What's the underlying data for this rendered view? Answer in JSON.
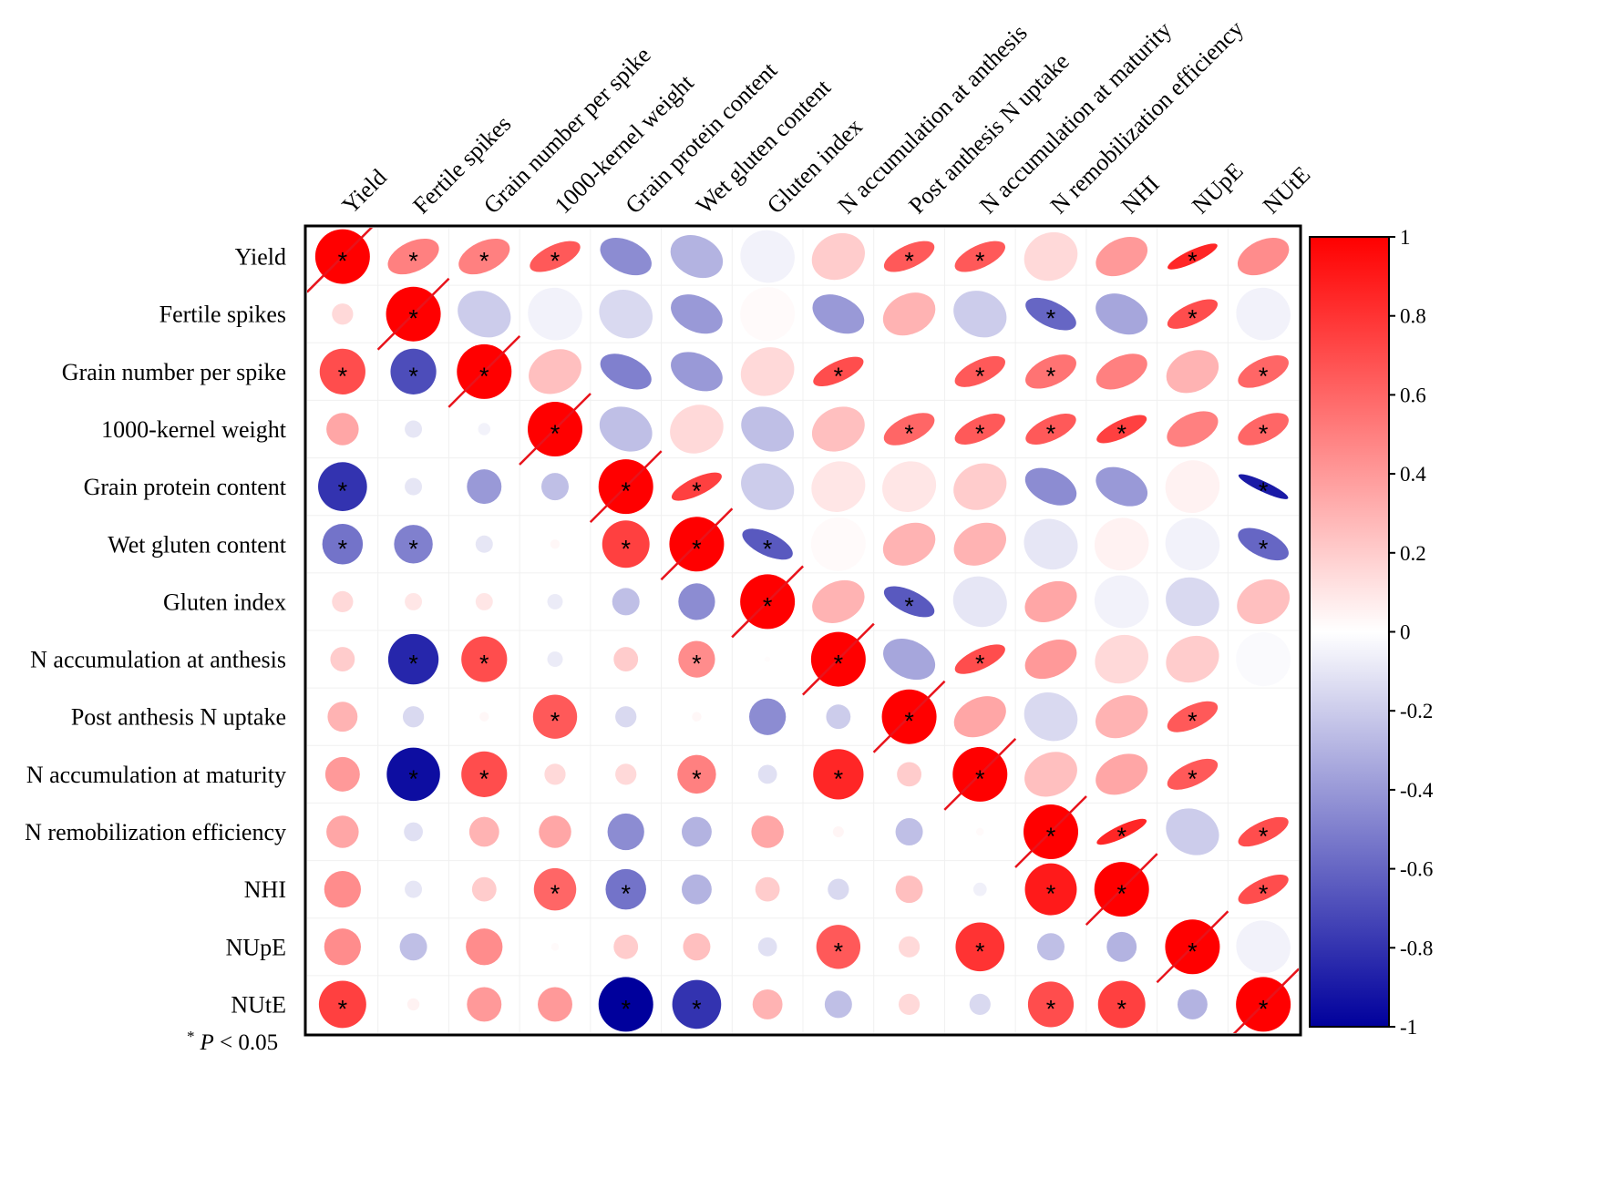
{
  "chart_data": {
    "type": "heatmap",
    "title": "",
    "variables": [
      "Yield",
      "Fertile spikes",
      "Grain number per spike",
      "1000-kernel weight",
      "Grain protein content",
      "Wet gluten content",
      "Gluten index",
      "N accumulation at anthesis",
      "Post anthesis N uptake",
      "N accumulation at maturity",
      "N remobilization efficiency",
      "NHI",
      "NUpE",
      "NUtE"
    ],
    "lower_triangle_display": "circle",
    "upper_triangle_display": "ellipse",
    "matrix": [
      [
        1.0,
        0.5,
        0.5,
        0.65,
        -0.45,
        -0.3,
        -0.05,
        0.2,
        0.65,
        0.65,
        0.15,
        0.4,
        0.85,
        0.45
      ],
      [
        0.15,
        1.0,
        -0.2,
        -0.05,
        -0.15,
        -0.4,
        0.02,
        -0.4,
        0.3,
        -0.2,
        -0.6,
        -0.35,
        0.7,
        -0.05
      ],
      [
        0.7,
        -0.7,
        1.0,
        0.25,
        -0.5,
        -0.4,
        0.15,
        0.7,
        0.0,
        0.65,
        0.55,
        0.5,
        0.3,
        0.6
      ],
      [
        0.35,
        -0.1,
        -0.05,
        1.0,
        -0.25,
        0.15,
        -0.25,
        0.25,
        0.6,
        0.65,
        0.65,
        0.75,
        0.5,
        0.6
      ],
      [
        -0.8,
        -0.1,
        -0.4,
        -0.25,
        1.0,
        0.75,
        -0.2,
        0.1,
        0.1,
        0.2,
        -0.45,
        -0.4,
        0.05,
        -0.9
      ],
      [
        -0.55,
        -0.5,
        -0.1,
        0.03,
        0.75,
        1.0,
        -0.65,
        0.02,
        0.3,
        0.3,
        -0.1,
        0.05,
        -0.05,
        -0.6
      ],
      [
        0.15,
        0.1,
        0.1,
        -0.08,
        -0.25,
        -0.45,
        1.0,
        0.3,
        -0.65,
        -0.1,
        0.35,
        -0.05,
        -0.15,
        0.25
      ],
      [
        0.2,
        -0.85,
        0.7,
        -0.08,
        0.2,
        0.45,
        0.01,
        1.0,
        -0.35,
        0.7,
        0.4,
        0.15,
        0.2,
        -0.02
      ],
      [
        0.3,
        -0.15,
        0.03,
        0.65,
        -0.15,
        0.03,
        -0.45,
        -0.2,
        1.0,
        0.35,
        -0.15,
        0.3,
        0.65,
        0.0
      ],
      [
        0.4,
        -0.95,
        0.7,
        0.15,
        0.15,
        0.5,
        -0.12,
        0.85,
        0.2,
        1.0,
        0.25,
        0.35,
        0.65,
        0.0
      ],
      [
        0.35,
        -0.12,
        0.3,
        0.35,
        -0.45,
        -0.3,
        0.35,
        0.04,
        -0.25,
        0.02,
        1.0,
        0.85,
        -0.2,
        0.7
      ],
      [
        0.45,
        -0.1,
        0.2,
        0.6,
        -0.55,
        -0.3,
        0.2,
        -0.15,
        0.25,
        -0.06,
        0.9,
        1.0,
        0.0,
        0.7
      ],
      [
        0.45,
        -0.25,
        0.45,
        0.02,
        0.2,
        0.25,
        -0.12,
        0.65,
        0.15,
        0.8,
        -0.25,
        -0.3,
        1.0,
        -0.05
      ],
      [
        0.75,
        0.05,
        0.4,
        0.4,
        -1.0,
        -0.8,
        0.3,
        -0.25,
        0.15,
        -0.15,
        0.7,
        0.75,
        -0.3,
        1.0
      ]
    ],
    "significant": [
      [
        1,
        1,
        1,
        1,
        0,
        0,
        0,
        0,
        1,
        1,
        0,
        0,
        1,
        0
      ],
      [
        0,
        1,
        0,
        0,
        0,
        0,
        0,
        0,
        0,
        0,
        1,
        0,
        1,
        0
      ],
      [
        1,
        1,
        1,
        0,
        0,
        0,
        0,
        1,
        0,
        1,
        1,
        0,
        0,
        1
      ],
      [
        0,
        0,
        0,
        1,
        0,
        0,
        0,
        0,
        1,
        1,
        1,
        1,
        0,
        1
      ],
      [
        1,
        0,
        0,
        0,
        1,
        1,
        0,
        0,
        0,
        0,
        0,
        0,
        0,
        1
      ],
      [
        1,
        1,
        0,
        0,
        1,
        1,
        1,
        0,
        0,
        0,
        0,
        0,
        0,
        1
      ],
      [
        0,
        0,
        0,
        0,
        0,
        0,
        1,
        0,
        1,
        0,
        0,
        0,
        0,
        0
      ],
      [
        0,
        1,
        1,
        0,
        0,
        1,
        0,
        1,
        0,
        1,
        0,
        0,
        0,
        0
      ],
      [
        0,
        0,
        0,
        1,
        0,
        0,
        0,
        0,
        1,
        0,
        0,
        0,
        1,
        0
      ],
      [
        0,
        1,
        1,
        0,
        0,
        1,
        0,
        1,
        0,
        1,
        0,
        0,
        1,
        0
      ],
      [
        0,
        0,
        0,
        0,
        0,
        0,
        0,
        0,
        0,
        0,
        1,
        1,
        0,
        1
      ],
      [
        0,
        0,
        0,
        1,
        1,
        0,
        0,
        0,
        0,
        0,
        1,
        1,
        0,
        1
      ],
      [
        0,
        0,
        0,
        0,
        0,
        0,
        0,
        1,
        0,
        1,
        0,
        0,
        1,
        0
      ],
      [
        1,
        0,
        0,
        0,
        1,
        1,
        0,
        0,
        0,
        0,
        1,
        1,
        0,
        1
      ]
    ],
    "significance_marker": "*",
    "colorbar": {
      "range": [
        -1,
        1
      ],
      "ticks": [
        1,
        0.8,
        0.6,
        0.4,
        0.2,
        0,
        -0.2,
        -0.4,
        -0.6,
        -0.8,
        -1
      ],
      "tick_labels": [
        "1",
        "0.8",
        "0.6",
        "0.4",
        "0.2",
        "0",
        "-0.2",
        "-0.4",
        "-0.6",
        "-0.8",
        "-1"
      ],
      "colors": {
        "negative": "#00009C",
        "zero": "#FFFFFF",
        "positive": "#FF0000"
      }
    },
    "footnote_symbol": "*",
    "footnote_var": "P",
    "footnote_rest": " < 0.05"
  }
}
